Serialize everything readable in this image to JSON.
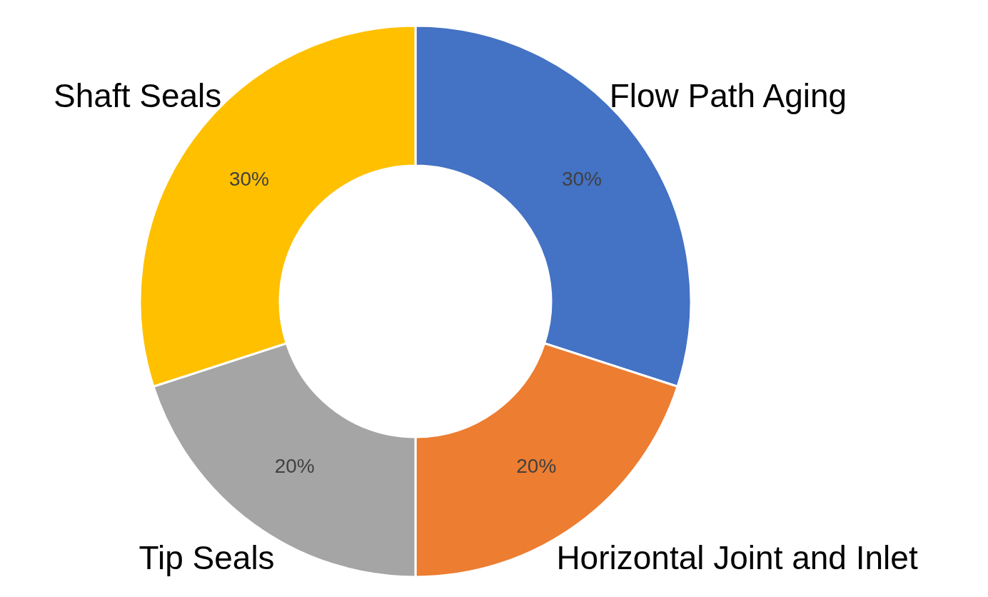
{
  "chart_data": {
    "type": "donut",
    "categories": [
      "Flow Path Aging",
      "Horizontal Joint and Inlet",
      "Tip Seals",
      "Shaft Seals"
    ],
    "values": [
      30,
      20,
      20,
      30
    ],
    "colors": [
      "#4472c4",
      "#ed7d31",
      "#a5a5a5",
      "#ffc000"
    ],
    "value_labels": [
      "30%",
      "20%",
      "20%",
      "30%"
    ]
  }
}
